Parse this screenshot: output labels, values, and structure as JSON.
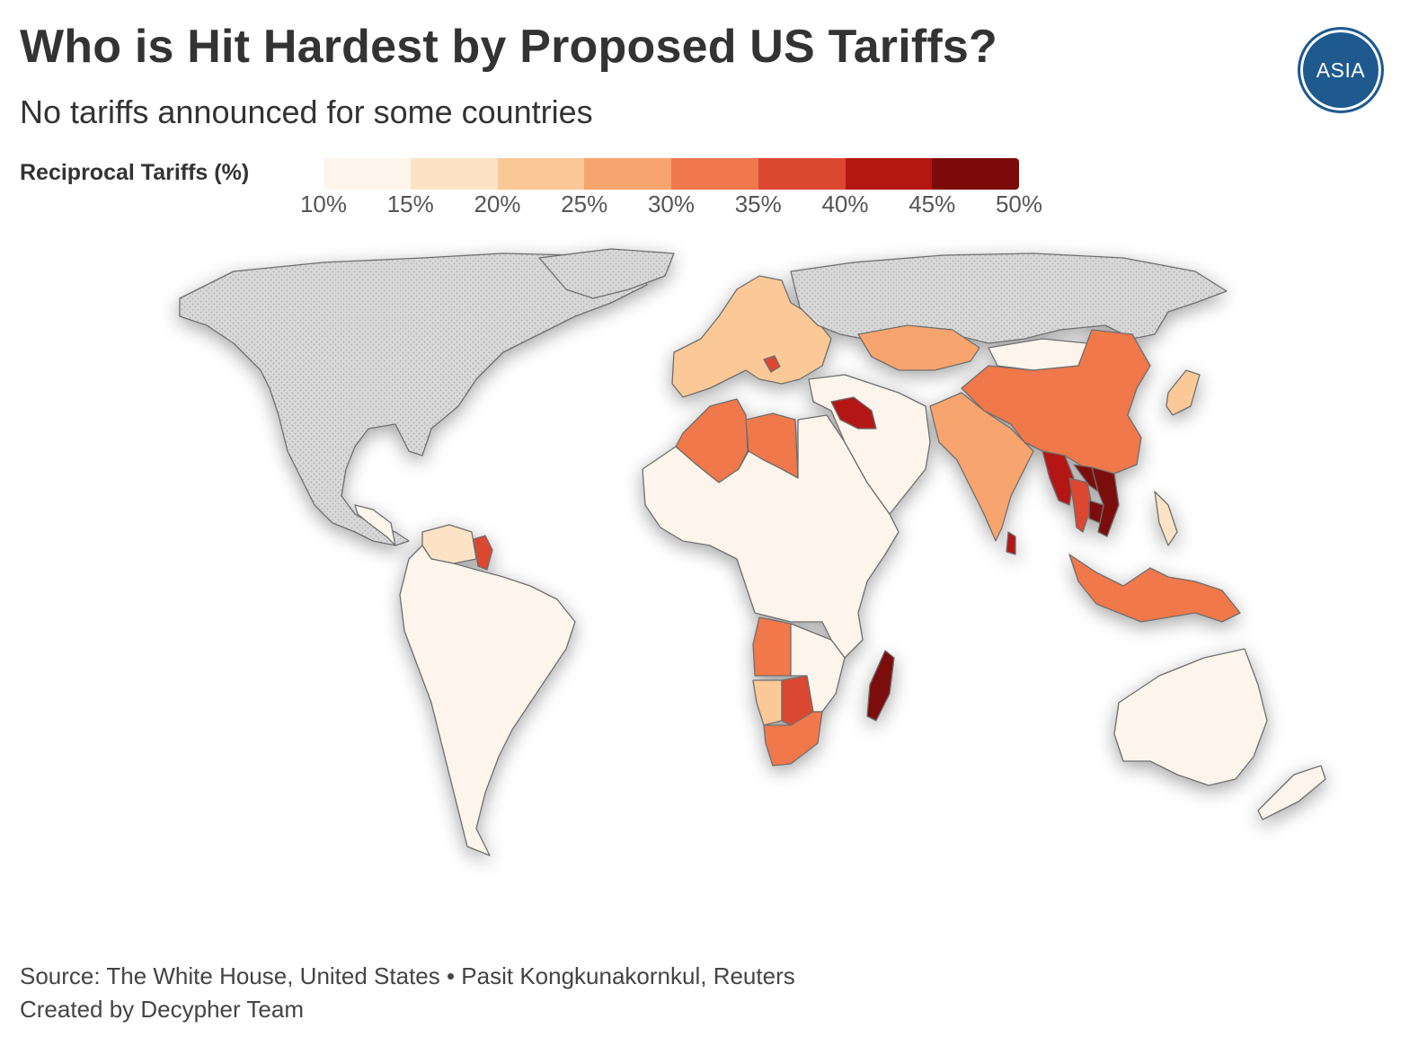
{
  "header": {
    "title": "Who is Hit Hardest by Proposed US Tariffs?",
    "subtitle": "No tariffs announced for some countries",
    "logo_text": "ASIA"
  },
  "legend": {
    "title": "Reciprocal Tariffs (%)",
    "ticks": [
      "10%",
      "15%",
      "20%",
      "25%",
      "30%",
      "35%",
      "40%",
      "45%",
      "50%"
    ],
    "colors": [
      "#fdf5ec",
      "#fce3c6",
      "#fbc997",
      "#f8a46e",
      "#f0784c",
      "#dc4730",
      "#b41612",
      "#7c0a0a"
    ],
    "no_data_color": "#d6d6d6"
  },
  "map": {
    "regions": [
      {
        "name": "north-america",
        "tariff": null
      },
      {
        "name": "russia",
        "tariff": null
      },
      {
        "name": "greenland",
        "tariff": null
      },
      {
        "name": "central-america",
        "tariff": 10
      },
      {
        "name": "south-america",
        "tariff": 10
      },
      {
        "name": "venezuela",
        "tariff": 15
      },
      {
        "name": "guyana",
        "tariff": 38
      },
      {
        "name": "western-europe",
        "tariff": 20
      },
      {
        "name": "serbia",
        "tariff": 37
      },
      {
        "name": "algeria",
        "tariff": 30
      },
      {
        "name": "libya",
        "tariff": 31
      },
      {
        "name": "africa",
        "tariff": 10
      },
      {
        "name": "angola",
        "tariff": 32
      },
      {
        "name": "namibia",
        "tariff": 21
      },
      {
        "name": "botswana",
        "tariff": 37
      },
      {
        "name": "south-africa",
        "tariff": 30
      },
      {
        "name": "madagascar",
        "tariff": 47
      },
      {
        "name": "middle-east",
        "tariff": 10
      },
      {
        "name": "syria-iraq",
        "tariff": 41
      },
      {
        "name": "kazakhstan",
        "tariff": 27
      },
      {
        "name": "pakistan-india",
        "tariff": 26
      },
      {
        "name": "sri-lanka",
        "tariff": 44
      },
      {
        "name": "china",
        "tariff": 34
      },
      {
        "name": "mongolia",
        "tariff": 10
      },
      {
        "name": "myanmar",
        "tariff": 44
      },
      {
        "name": "thailand",
        "tariff": 36
      },
      {
        "name": "laos",
        "tariff": 48
      },
      {
        "name": "vietnam",
        "tariff": 46
      },
      {
        "name": "cambodia",
        "tariff": 49
      },
      {
        "name": "japan-korea",
        "tariff": 24
      },
      {
        "name": "philippines",
        "tariff": 17
      },
      {
        "name": "indonesia",
        "tariff": 32
      },
      {
        "name": "australia",
        "tariff": 10
      },
      {
        "name": "new-zealand",
        "tariff": 10
      }
    ]
  },
  "footer": {
    "source": "Source: The White House, United States • Pasit Kongkunakornkul, Reuters",
    "credit": "Created by Decypher Team"
  }
}
